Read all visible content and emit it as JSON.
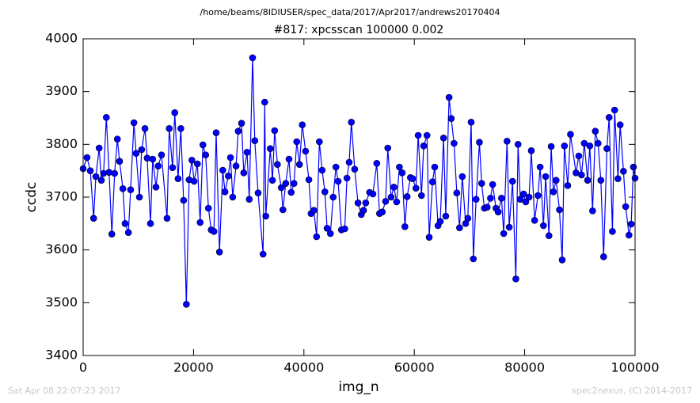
{
  "chart_data": {
    "type": "line",
    "suptitle": "/home/beams/8IDIUSER/spec_data/2017/Apr2017/andrews20170404",
    "title": "#817: xpcsscan 100000 0.002",
    "xlabel": "img_n",
    "ylabel": "ccdc",
    "annotations": [
      "Sat Apr 08 22:07:23 2017",
      "spec2nexus, (C) 2014-2017"
    ],
    "color": "#0000ff",
    "marker": "circle",
    "xlim": [
      0,
      100000
    ],
    "xticks": [
      0,
      20000,
      40000,
      60000,
      80000,
      100000
    ],
    "ylim": [
      3400,
      4000
    ],
    "yticks": [
      3400,
      3500,
      3600,
      3700,
      3800,
      3900,
      4000
    ],
    "x": [
      0,
      700,
      1300,
      1900,
      2300,
      2900,
      3300,
      3700,
      4200,
      4700,
      5200,
      5700,
      6200,
      6600,
      7200,
      7600,
      8200,
      8600,
      9200,
      9600,
      10200,
      10600,
      11200,
      11600,
      12200,
      12600,
      13200,
      13600,
      14200,
      15200,
      15600,
      16200,
      16600,
      17200,
      17700,
      18200,
      18700,
      19200,
      19700,
      20100,
      20700,
      21200,
      21700,
      22200,
      22700,
      23200,
      23700,
      24100,
      24700,
      25300,
      25700,
      26300,
      26700,
      27100,
      27700,
      28100,
      28700,
      29100,
      29700,
      30100,
      30700,
      31100,
      31700,
      32600,
      32900,
      33100,
      33900,
      34300,
      34700,
      35200,
      35900,
      36200,
      36700,
      37300,
      37700,
      38200,
      38700,
      39200,
      39700,
      40300,
      40900,
      41300,
      41800,
      42300,
      42800,
      43300,
      43800,
      44200,
      44800,
      45300,
      45800,
      46200,
      46800,
      47400,
      47800,
      48200,
      48600,
      49200,
      49800,
      50400,
      50800,
      51200,
      51900,
      52500,
      53200,
      53700,
      54200,
      54800,
      55200,
      55800,
      56300,
      56800,
      57300,
      57800,
      58300,
      58700,
      59300,
      59700,
      60300,
      60700,
      61300,
      61700,
      62300,
      62700,
      63300,
      63700,
      64300,
      64700,
      65300,
      65700,
      66300,
      66700,
      67200,
      67700,
      68200,
      68700,
      69300,
      69700,
      70300,
      70700,
      71200,
      71800,
      72200,
      72700,
      73200,
      73800,
      74200,
      74800,
      75200,
      75800,
      76200,
      76800,
      77200,
      77800,
      78400,
      78800,
      79200,
      79800,
      80200,
      80800,
      81200,
      81800,
      82400,
      82800,
      83400,
      83800,
      84400,
      84800,
      85200,
      85700,
      86300,
      86800,
      87200,
      87800,
      88300,
      89300,
      89800,
      90300,
      90800,
      91400,
      91800,
      92300,
      92800,
      93300,
      93800,
      94300,
      94900,
      95300,
      95900,
      96300,
      96900,
      97300,
      97900,
      98300,
      98900,
      99300,
      99700,
      100000
    ],
    "values": [
      3754,
      3775,
      3750,
      3660,
      3739,
      3793,
      3732,
      3745,
      3851,
      3747,
      3630,
      3745,
      3810,
      3768,
      3716,
      3650,
      3633,
      3714,
      3841,
      3783,
      3700,
      3790,
      3830,
      3774,
      3650,
      3772,
      3719,
      3759,
      3780,
      3660,
      3830,
      3756,
      3860,
      3735,
      3830,
      3694,
      3497,
      3733,
      3770,
      3730,
      3763,
      3652,
      3799,
      3780,
      3679,
      3638,
      3635,
      3822,
      3596,
      3751,
      3710,
      3740,
      3775,
      3700,
      3759,
      3825,
      3840,
      3746,
      3785,
      3696,
      3964,
      3807,
      3708,
      3592,
      3880,
      3664,
      3792,
      3732,
      3826,
      3762,
      3718,
      3676,
      3726,
      3772,
      3709,
      3726,
      3805,
      3762,
      3837,
      3787,
      3733,
      3669,
      3675,
      3625,
      3805,
      3751,
      3710,
      3641,
      3631,
      3700,
      3757,
      3730,
      3638,
      3640,
      3736,
      3766,
      3842,
      3753,
      3689,
      3667,
      3675,
      3689,
      3709,
      3706,
      3764,
      3669,
      3672,
      3692,
      3793,
      3700,
      3719,
      3691,
      3757,
      3746,
      3644,
      3701,
      3737,
      3735,
      3717,
      3817,
      3703,
      3797,
      3817,
      3624,
      3729,
      3757,
      3646,
      3654,
      3812,
      3664,
      3889,
      3849,
      3802,
      3708,
      3642,
      3739,
      3650,
      3660,
      3842,
      3583,
      3696,
      3804,
      3726,
      3679,
      3681,
      3698,
      3724,
      3679,
      3672,
      3698,
      3631,
      3806,
      3643,
      3730,
      3545,
      3800,
      3696,
      3706,
      3691,
      3700,
      3788,
      3656,
      3703,
      3757,
      3646,
      3739,
      3627,
      3796,
      3710,
      3732,
      3676,
      3581,
      3797,
      3722,
      3819,
      3746,
      3778,
      3742,
      3802,
      3732,
      3797,
      3674,
      3825,
      3802,
      3732,
      3587,
      3792,
      3851,
      3635,
      3865,
      3735,
      3837,
      3749,
      3682,
      3628,
      3649,
      3757,
      3736
    ]
  }
}
